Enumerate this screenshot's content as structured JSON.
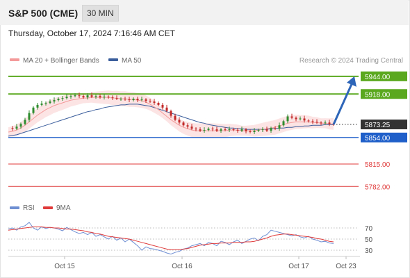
{
  "header": {
    "title": "S&P 500 (CME)",
    "interval": "30 MIN"
  },
  "timestamp": "Thursday, October 17, 2024 7:16:46 AM CET",
  "credit": "Research © 2024 Trading Central",
  "colors": {
    "green": "#5aa81e",
    "blue": "#1f5fc9",
    "red": "#e03a3a",
    "dark": "#333333",
    "arrow": "#2d65b8",
    "ma20": "#f49a9a",
    "ma50": "#3a5d9c",
    "band": "#fbd9d9",
    "rsi": "#6f8fd3",
    "rsi_ma": "#e03a3a"
  },
  "chart_data": [
    {
      "type": "candlestick",
      "legend": [
        {
          "label": "MA 20 + Bollinger Bands",
          "color": "#f49a9a"
        },
        {
          "label": "MA 50",
          "color": "#3a5d9c"
        }
      ],
      "x_tick_labels": [
        "Oct 15",
        "Oct 16",
        "Oct 17",
        "Oct 23"
      ],
      "ylim": [
        5770,
        5952
      ],
      "price_levels": [
        {
          "value": 5944.0,
          "label": "5944.00",
          "role": "resistance",
          "color": "#5aa81e",
          "style": "solid"
        },
        {
          "value": 5918.0,
          "label": "5918.00",
          "role": "resistance",
          "color": "#5aa81e",
          "style": "solid"
        },
        {
          "value": 5873.25,
          "label": "5873.25",
          "role": "last price",
          "color": "#333333",
          "style": "dotted"
        },
        {
          "value": 5854.0,
          "label": "5854.00",
          "role": "pivot",
          "color": "#1f5fc9",
          "style": "solid"
        },
        {
          "value": 5815.0,
          "label": "5815.00",
          "role": "support",
          "color": "#e03a3a",
          "style": "thin"
        },
        {
          "value": 5782.0,
          "label": "5782.00",
          "role": "support",
          "color": "#e03a3a",
          "style": "thin"
        }
      ],
      "forecast_arrow": {
        "from": 5873.25,
        "to": 5944.0
      },
      "close_path": [
        5868,
        5867,
        5870,
        5874,
        5880,
        5890,
        5898,
        5902,
        5904,
        5905,
        5907,
        5909,
        5911,
        5912,
        5914,
        5915,
        5916,
        5915,
        5913,
        5916,
        5914,
        5915,
        5913,
        5914,
        5913,
        5912,
        5911,
        5911,
        5910,
        5909,
        5911,
        5909,
        5910,
        5908,
        5907,
        5905,
        5902,
        5898,
        5893,
        5886,
        5880,
        5876,
        5872,
        5870,
        5867,
        5866,
        5864,
        5865,
        5867,
        5866,
        5864,
        5866,
        5865,
        5866,
        5865,
        5864,
        5866,
        5863,
        5862,
        5864,
        5865,
        5866,
        5864,
        5868,
        5867,
        5872,
        5878,
        5885,
        5883,
        5881,
        5882,
        5879,
        5878,
        5877,
        5876,
        5875,
        5876,
        5874,
        5873.25
      ],
      "ma20_path": [
        5862,
        5863,
        5865,
        5868,
        5872,
        5877,
        5882,
        5887,
        5891,
        5895,
        5898,
        5901,
        5903,
        5905,
        5907,
        5909,
        5910,
        5911,
        5912,
        5912,
        5913,
        5913,
        5913,
        5913,
        5913,
        5912,
        5912,
        5911,
        5911,
        5910,
        5910,
        5909,
        5908,
        5906,
        5903,
        5899,
        5895,
        5890,
        5885,
        5880,
        5876,
        5872,
        5869,
        5867,
        5865,
        5864,
        5864,
        5864,
        5864,
        5864,
        5864,
        5864,
        5864,
        5865,
        5865,
        5865,
        5864,
        5864,
        5864,
        5864,
        5865,
        5866,
        5867,
        5868,
        5869,
        5871,
        5873,
        5875,
        5876,
        5877,
        5877,
        5877,
        5877,
        5876,
        5876,
        5875,
        5875,
        5874,
        5874
      ],
      "ma50_path": [
        5856,
        5857,
        5858,
        5860,
        5862,
        5864,
        5866,
        5868,
        5870,
        5872,
        5874,
        5876,
        5878,
        5880,
        5882,
        5884,
        5886,
        5888,
        5890,
        5892,
        5893,
        5895,
        5896,
        5898,
        5899,
        5900,
        5901,
        5902,
        5902,
        5903,
        5903,
        5903,
        5902,
        5901,
        5900,
        5898,
        5896,
        5894,
        5892,
        5890,
        5888,
        5886,
        5884,
        5882,
        5880,
        5878,
        5876,
        5875,
        5873,
        5872,
        5871,
        5870,
        5869,
        5868,
        5868,
        5867,
        5867,
        5866,
        5866,
        5866,
        5866,
        5866,
        5866,
        5867,
        5867,
        5868,
        5868,
        5869,
        5869,
        5870,
        5870,
        5871,
        5871,
        5872,
        5872,
        5872,
        5873,
        5873,
        5873
      ]
    },
    {
      "type": "line",
      "legend": [
        {
          "label": "RSI",
          "color": "#6f8fd3"
        },
        {
          "label": "9MA",
          "color": "#e03a3a"
        }
      ],
      "ylim": [
        20,
        80
      ],
      "y_ticks": [
        {
          "value": 70,
          "label": "70"
        },
        {
          "value": 50,
          "label": "50"
        },
        {
          "value": 30,
          "label": "30"
        }
      ],
      "series": [
        {
          "name": "RSI",
          "color": "#6f8fd3",
          "values": [
            68,
            70,
            66,
            72,
            74,
            80,
            70,
            66,
            72,
            69,
            71,
            70,
            68,
            65,
            71,
            67,
            63,
            60,
            62,
            58,
            62,
            55,
            58,
            54,
            50,
            55,
            48,
            52,
            45,
            50,
            44,
            38,
            30,
            36,
            33,
            32,
            30,
            28,
            25,
            23,
            26,
            28,
            32,
            34,
            38,
            40,
            42,
            38,
            44,
            42,
            38,
            46,
            44,
            40,
            45,
            48,
            42,
            46,
            50,
            52,
            47,
            55,
            58,
            66,
            64,
            62,
            60,
            58,
            56,
            58,
            54,
            52,
            55,
            50,
            48,
            45,
            46,
            43,
            42
          ]
        },
        {
          "name": "9MA",
          "color": "#e03a3a",
          "values": [
            66,
            67,
            68,
            69,
            70,
            71,
            72,
            72,
            72,
            71,
            71,
            70,
            70,
            69,
            68,
            68,
            67,
            66,
            65,
            63,
            62,
            60,
            59,
            57,
            55,
            54,
            53,
            52,
            51,
            50,
            48,
            46,
            44,
            42,
            40,
            38,
            36,
            34,
            32,
            31,
            31,
            31,
            32,
            33,
            35,
            37,
            39,
            40,
            41,
            42,
            42,
            43,
            43,
            43,
            44,
            44,
            44,
            45,
            45,
            46,
            48,
            50,
            52,
            55,
            57,
            58,
            59,
            59,
            58,
            57,
            56,
            55,
            54,
            53,
            51,
            50,
            48,
            46,
            45
          ]
        }
      ]
    }
  ]
}
